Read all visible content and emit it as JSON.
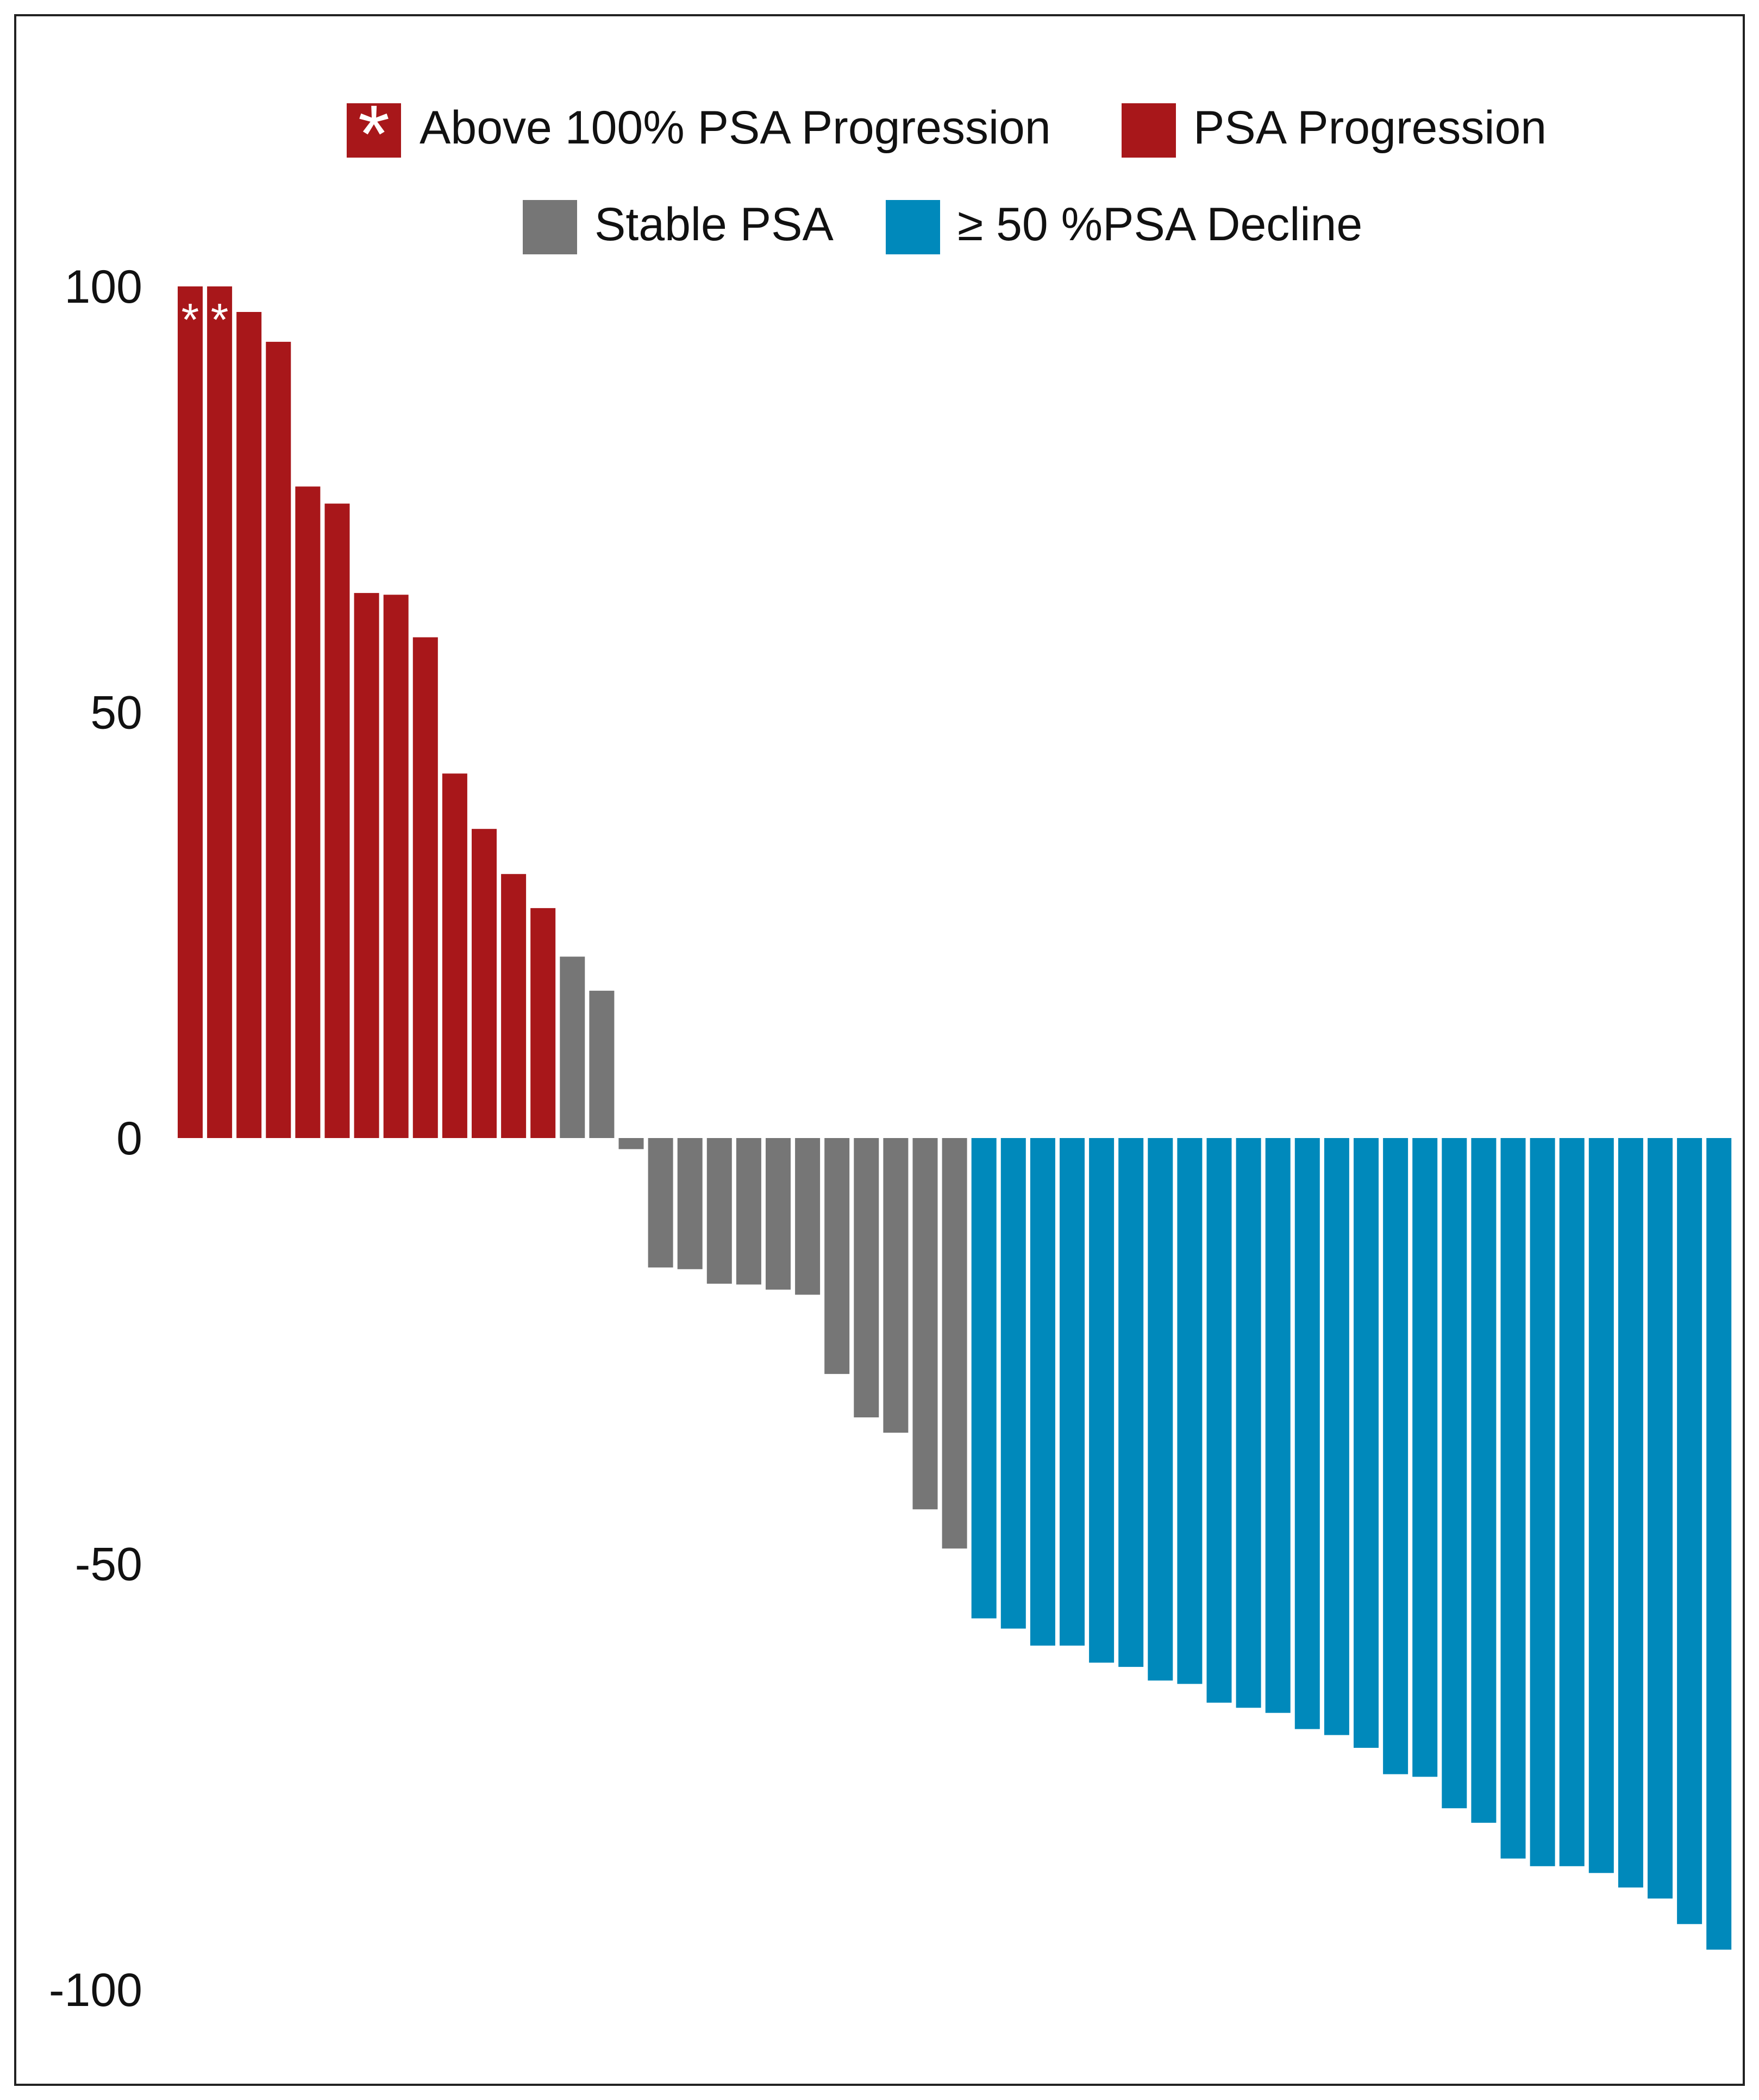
{
  "chart_data": {
    "type": "bar",
    "title": "",
    "xlabel": "",
    "ylabel": "",
    "ylim": [
      -100,
      100
    ],
    "yticks": [
      100,
      50,
      0,
      -50,
      -100
    ],
    "ytick_labels": [
      "100",
      "50",
      "0",
      "-50",
      "-100"
    ],
    "grid": false,
    "legend_position": "top-center",
    "legend": [
      {
        "key": "above",
        "label": "Above 100% PSA Progression",
        "marker": "*",
        "color": "#A8171A"
      },
      {
        "key": "progression",
        "label": "PSA Progression",
        "color": "#A8171A"
      },
      {
        "key": "stable",
        "label": "Stable PSA",
        "color": "#767676"
      },
      {
        "key": "decline",
        "label": "≥ 50 %PSA Decline",
        "color": "#0089BB"
      }
    ],
    "bar_marker": "*",
    "bars": [
      {
        "value": 100,
        "category": "above"
      },
      {
        "value": 100,
        "category": "above"
      },
      {
        "value": 97,
        "category": "progression"
      },
      {
        "value": 93.5,
        "category": "progression"
      },
      {
        "value": 76.5,
        "category": "progression"
      },
      {
        "value": 74.5,
        "category": "progression"
      },
      {
        "value": 64,
        "category": "progression"
      },
      {
        "value": 63.8,
        "category": "progression"
      },
      {
        "value": 58.8,
        "category": "progression"
      },
      {
        "value": 42.8,
        "category": "progression"
      },
      {
        "value": 36.3,
        "category": "progression"
      },
      {
        "value": 31,
        "category": "progression"
      },
      {
        "value": 27,
        "category": "progression"
      },
      {
        "value": 21.3,
        "category": "stable"
      },
      {
        "value": 17.3,
        "category": "stable"
      },
      {
        "value": -1.3,
        "category": "stable"
      },
      {
        "value": -15.2,
        "category": "stable"
      },
      {
        "value": -15.4,
        "category": "stable"
      },
      {
        "value": -17.1,
        "category": "stable"
      },
      {
        "value": -17.2,
        "category": "stable"
      },
      {
        "value": -17.8,
        "category": "stable"
      },
      {
        "value": -18.4,
        "category": "stable"
      },
      {
        "value": -27.7,
        "category": "stable"
      },
      {
        "value": -32.8,
        "category": "stable"
      },
      {
        "value": -34.6,
        "category": "stable"
      },
      {
        "value": -43.6,
        "category": "stable"
      },
      {
        "value": -48.2,
        "category": "stable"
      },
      {
        "value": -56.4,
        "category": "decline"
      },
      {
        "value": -57.6,
        "category": "decline"
      },
      {
        "value": -59.6,
        "category": "decline"
      },
      {
        "value": -59.6,
        "category": "decline"
      },
      {
        "value": -61.6,
        "category": "decline"
      },
      {
        "value": -62.1,
        "category": "decline"
      },
      {
        "value": -63.7,
        "category": "decline"
      },
      {
        "value": -64.1,
        "category": "decline"
      },
      {
        "value": -66.3,
        "category": "decline"
      },
      {
        "value": -66.9,
        "category": "decline"
      },
      {
        "value": -67.5,
        "category": "decline"
      },
      {
        "value": -69.4,
        "category": "decline"
      },
      {
        "value": -70.1,
        "category": "decline"
      },
      {
        "value": -71.6,
        "category": "decline"
      },
      {
        "value": -74.7,
        "category": "decline"
      },
      {
        "value": -75,
        "category": "decline"
      },
      {
        "value": -78.7,
        "category": "decline"
      },
      {
        "value": -80.4,
        "category": "decline"
      },
      {
        "value": -84.6,
        "category": "decline"
      },
      {
        "value": -85.5,
        "category": "decline"
      },
      {
        "value": -85.5,
        "category": "decline"
      },
      {
        "value": -86.3,
        "category": "decline"
      },
      {
        "value": -88,
        "category": "decline"
      },
      {
        "value": -89.3,
        "category": "decline"
      },
      {
        "value": -92.3,
        "category": "decline"
      },
      {
        "value": -95.3,
        "category": "decline"
      }
    ]
  }
}
